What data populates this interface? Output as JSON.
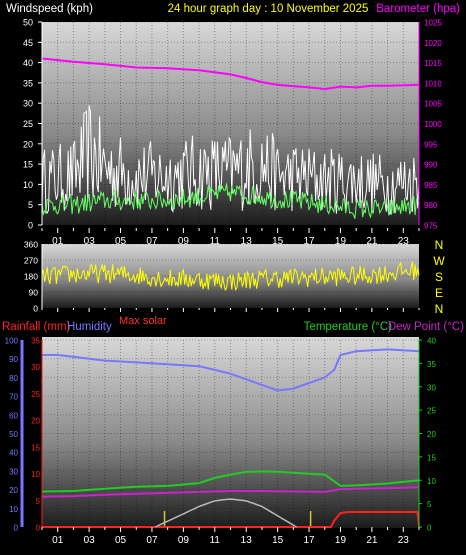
{
  "colors": {
    "wind_label": "#ffffff",
    "title": "#ffff00",
    "barometer": "#ff00ff",
    "gust": "#ffffff",
    "avg_wind": "#66ff66",
    "direction": "#ffff00",
    "compass": "#ffff00",
    "rainfall": "#ff2020",
    "humidity": "#7777ff",
    "max_solar": "#ff3333",
    "temperature": "#22cc22",
    "dew_point": "#cc22cc",
    "solar": "#bbbbbb",
    "ticks": "#ffffff"
  },
  "chart_data": [
    {
      "type": "line",
      "title": "24 hour graph day : 10 November 2025",
      "ylabel": "Windspeed (kph)",
      "y2label": "Barometer (hpa)",
      "ylim": [
        0,
        50
      ],
      "y2lim": [
        975,
        1025
      ],
      "yticks": [
        0,
        5,
        10,
        15,
        20,
        25,
        30,
        35,
        40,
        45,
        50
      ],
      "y2ticks": [
        975,
        980,
        985,
        990,
        995,
        1000,
        1005,
        1010,
        1015,
        1020,
        1025
      ],
      "x_hours": [
        "01",
        "03",
        "05",
        "07",
        "09",
        "11",
        "13",
        "15",
        "17",
        "19",
        "21",
        "23"
      ],
      "series": [
        {
          "role": "barometer",
          "axis": "right",
          "x": [
            0,
            2,
            4,
            6,
            8,
            10,
            12,
            13,
            14,
            15,
            16,
            17,
            18,
            19,
            20,
            21,
            22,
            24
          ],
          "values": [
            1016,
            1015.2,
            1014.6,
            1013.8,
            1013.6,
            1013.1,
            1012.1,
            1011.2,
            1010.2,
            1009.5,
            1009.2,
            1008.9,
            1008.5,
            1009.1,
            1008.9,
            1009.3,
            1009.3,
            1009.5
          ]
        },
        {
          "role": "gust",
          "axis": "left",
          "x": [
            0,
            2,
            3,
            4,
            5,
            6,
            8,
            10,
            12,
            13,
            14,
            15,
            16,
            18,
            20,
            22,
            24
          ],
          "values": [
            11,
            12,
            18,
            14,
            13,
            12,
            12,
            13,
            13,
            14,
            15,
            12,
            12,
            11,
            11,
            10,
            11
          ]
        },
        {
          "role": "avg_wind",
          "axis": "left",
          "x": [
            0,
            2,
            4,
            6,
            8,
            10,
            12,
            14,
            16,
            18,
            20,
            22,
            24
          ],
          "values": [
            5,
            5,
            6,
            6,
            6,
            7,
            8,
            7,
            6,
            5,
            4,
            4,
            5
          ]
        }
      ]
    },
    {
      "type": "scatter",
      "ylim": [
        0,
        360
      ],
      "yticks": [
        0,
        90,
        180,
        270,
        360
      ],
      "compass": [
        "N",
        "W",
        "S",
        "E",
        "N"
      ],
      "series": [
        {
          "role": "direction",
          "x": [
            0,
            2,
            4,
            6,
            8,
            10,
            12,
            14,
            16,
            18,
            20,
            22,
            24
          ],
          "values": [
            175,
            190,
            195,
            185,
            165,
            160,
            150,
            165,
            170,
            175,
            180,
            195,
            215
          ]
        }
      ]
    },
    {
      "type": "line",
      "label_rain": "Rainfall (mm)",
      "label_humidity": "Humidity",
      "label_max_solar": "Max solar",
      "label_temperature": "Temperature (°C)",
      "label_dew_point": "Dew Point (°C)",
      "ylim": [
        0,
        100
      ],
      "ylim_rain": [
        0,
        35
      ],
      "ylim_temp": [
        0,
        40
      ],
      "yticks_humidity": [
        0,
        10,
        20,
        30,
        40,
        50,
        60,
        70,
        80,
        90,
        100
      ],
      "yticks_rain": [
        0,
        5,
        10,
        15,
        20,
        25,
        30,
        35
      ],
      "yticks_temp": [
        0,
        5,
        10,
        15,
        20,
        25,
        30,
        35,
        40
      ],
      "x_hours": [
        "01",
        "03",
        "05",
        "07",
        "09",
        "11",
        "13",
        "15",
        "17",
        "19",
        "21",
        "23"
      ],
      "series": [
        {
          "role": "humidity",
          "axis": "humidity",
          "x": [
            0,
            1,
            2,
            3,
            4,
            6,
            8,
            10,
            11,
            12,
            13,
            14,
            15,
            16,
            17,
            18,
            18.6,
            19,
            20,
            22,
            24
          ],
          "values": [
            92,
            92,
            91,
            90,
            89,
            88,
            87,
            86,
            84,
            82,
            79,
            76,
            73,
            74,
            77,
            80,
            84,
            92,
            94,
            95,
            94
          ]
        },
        {
          "role": "temperature",
          "axis": "temp",
          "x": [
            0,
            2,
            4,
            6,
            8,
            10,
            11,
            12,
            13,
            14,
            15,
            16,
            17,
            18,
            19,
            20,
            22,
            24
          ],
          "values": [
            7.6,
            7.7,
            8.2,
            8.6,
            8.8,
            9.4,
            10.5,
            11.2,
            11.8,
            11.9,
            11.8,
            11.6,
            11.4,
            11.2,
            8.8,
            8.9,
            9.3,
            10.0
          ]
        },
        {
          "role": "dew_point",
          "axis": "temp",
          "x": [
            0,
            2,
            4,
            6,
            8,
            10,
            12,
            14,
            16,
            18,
            19,
            20,
            22,
            24
          ],
          "values": [
            6.5,
            6.6,
            6.9,
            7.1,
            7.3,
            7.5,
            7.7,
            7.7,
            7.6,
            7.5,
            8.1,
            8.2,
            8.3,
            8.5
          ]
        },
        {
          "role": "rainfall",
          "axis": "rain",
          "x": [
            0,
            18.4,
            18.6,
            19,
            19.5,
            23.9,
            24
          ],
          "values": [
            0,
            0,
            1.2,
            2.6,
            2.8,
            2.8,
            0.2
          ]
        },
        {
          "role": "solar",
          "axis": "humidity",
          "x": [
            7.2,
            9,
            10,
            11,
            12,
            13,
            14,
            15,
            16.2
          ],
          "values": [
            0,
            7,
            11,
            14,
            15,
            14,
            11,
            6,
            0
          ]
        }
      ]
    }
  ]
}
